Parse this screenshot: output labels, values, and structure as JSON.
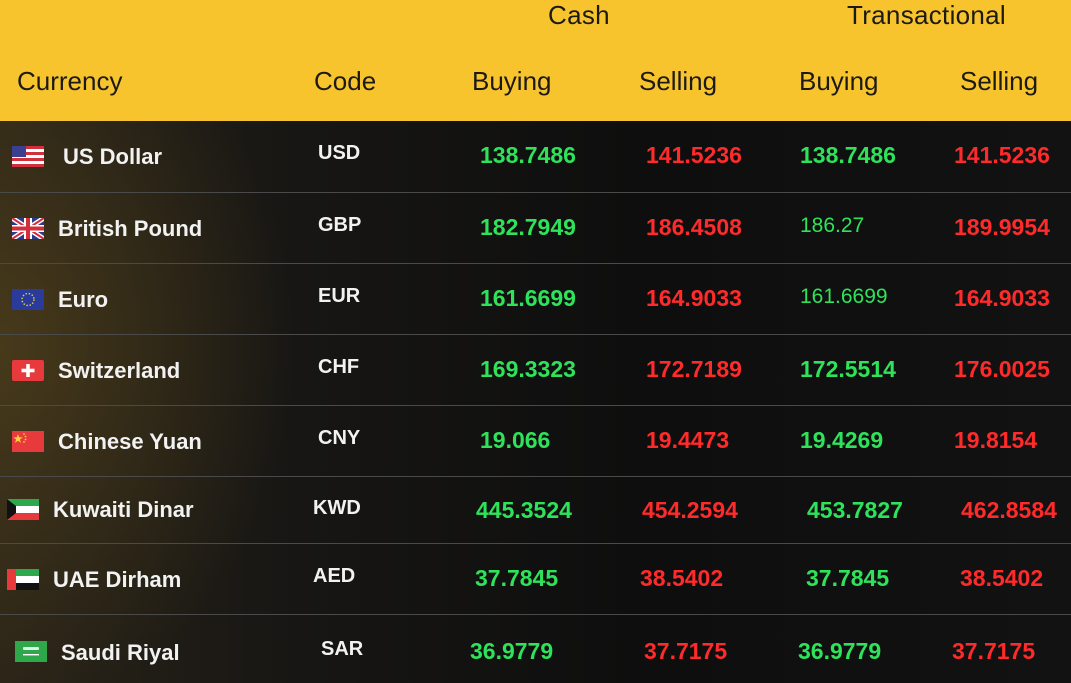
{
  "header": {
    "group_cash": "Cash",
    "group_transactional": "Transactional",
    "col_currency": "Currency",
    "col_code": "Code",
    "col_cash_buying": "Buying",
    "col_cash_selling": "Selling",
    "col_tx_buying": "Buying",
    "col_tx_selling": "Selling"
  },
  "colors": {
    "header_bg": "#f8c42e",
    "buying": "#2ee35a",
    "selling": "#ff2a2a"
  },
  "rates": [
    {
      "flag": "us-flag-icon",
      "name": "US Dollar",
      "code": "USD",
      "cash_buy": "138.7486",
      "cash_sell": "141.5236",
      "tx_buy": "138.7486",
      "tx_sell": "141.5236"
    },
    {
      "flag": "uk-flag-icon",
      "name": "British Pound",
      "code": "GBP",
      "cash_buy": "182.7949",
      "cash_sell": "186.4508",
      "tx_buy": "186.27",
      "tx_sell": "189.9954"
    },
    {
      "flag": "eu-flag-icon",
      "name": "Euro",
      "code": "EUR",
      "cash_buy": "161.6699",
      "cash_sell": "164.9033",
      "tx_buy": "161.6699",
      "tx_sell": "164.9033"
    },
    {
      "flag": "switzerland-flag-icon",
      "name": "Switzerland",
      "code": "CHF",
      "cash_buy": "169.3323",
      "cash_sell": "172.7189",
      "tx_buy": "172.5514",
      "tx_sell": "176.0025"
    },
    {
      "flag": "china-flag-icon",
      "name": "Chinese Yuan",
      "code": "CNY",
      "cash_buy": "19.066",
      "cash_sell": "19.4473",
      "tx_buy": "19.4269",
      "tx_sell": "19.8154"
    },
    {
      "flag": "kuwait-flag-icon",
      "name": "Kuwaiti Dinar",
      "code": "KWD",
      "cash_buy": "445.3524",
      "cash_sell": "454.2594",
      "tx_buy": "453.7827",
      "tx_sell": "462.8584"
    },
    {
      "flag": "uae-flag-icon",
      "name": "UAE Dirham",
      "code": "AED",
      "cash_buy": "37.7845",
      "cash_sell": "38.5402",
      "tx_buy": "37.7845",
      "tx_sell": "38.5402"
    },
    {
      "flag": "saudi-flag-icon",
      "name": "Saudi Riyal",
      "code": "SAR",
      "cash_buy": "36.9779",
      "cash_sell": "37.7175",
      "tx_buy": "36.9779",
      "tx_sell": "37.7175"
    }
  ]
}
